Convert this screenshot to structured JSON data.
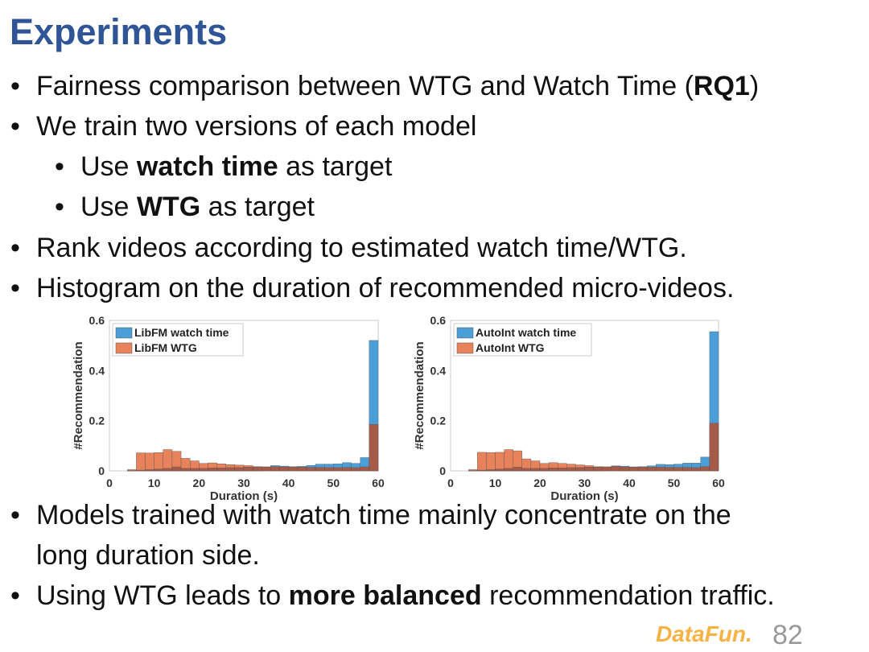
{
  "title": "Experiments",
  "bullets": [
    {
      "pre": "Fairness comparison between WTG and Watch Time (",
      "bold": "RQ1",
      "post": ")"
    },
    {
      "pre": "We train two versions of each model",
      "bold": "",
      "post": ""
    },
    {
      "pre": "Use ",
      "bold": "watch time",
      "post": " as target"
    },
    {
      "pre": "Use ",
      "bold": "WTG",
      "post": " as target"
    },
    {
      "pre": "Rank videos according to estimated watch time/WTG.",
      "bold": "",
      "post": ""
    },
    {
      "pre": "Histogram on the duration of recommended micro-videos.",
      "bold": "",
      "post": ""
    },
    {
      "pre": "Models trained with watch time mainly concentrate on the",
      "bold": "",
      "post": ""
    },
    {
      "pre": "long duration side.",
      "bold": "",
      "post": ""
    },
    {
      "pre": "Using WTG leads to ",
      "bold": "more balanced",
      "post": " recommendation traffic."
    }
  ],
  "page_number": "82",
  "logo_text": "DataFun.",
  "colors": {
    "title": "#2f5597",
    "watch_time": "#4a9fd8",
    "wtg": "#e8825a",
    "overlap": "#a65a48"
  },
  "chart_data": [
    {
      "type": "bar",
      "xlabel": "Duration (s)",
      "ylabel": "#Recommendation",
      "xlim": [
        0,
        60
      ],
      "ylim": [
        0,
        0.6
      ],
      "bin_width": 2,
      "xticks": [
        "0",
        "10",
        "20",
        "30",
        "40",
        "50",
        "60"
      ],
      "yticks": [
        "0",
        "0.2",
        "0.4",
        "0.6"
      ],
      "legend": "top-left",
      "series": [
        {
          "name": "LibFM watch time",
          "values": [
            0,
            0,
            0.001,
            0.003,
            0.005,
            0.007,
            0.01,
            0.016,
            0.01,
            0.01,
            0.01,
            0.012,
            0.012,
            0.013,
            0.013,
            0.015,
            0.016,
            0.016,
            0.021,
            0.019,
            0.017,
            0.018,
            0.022,
            0.027,
            0.027,
            0.028,
            0.033,
            0.03,
            0.053,
            0.52
          ]
        },
        {
          "name": "LibFM WTG",
          "values": [
            0,
            0,
            0.005,
            0.072,
            0.071,
            0.073,
            0.085,
            0.078,
            0.05,
            0.04,
            0.03,
            0.032,
            0.028,
            0.025,
            0.023,
            0.021,
            0.017,
            0.016,
            0.017,
            0.016,
            0.015,
            0.015,
            0.014,
            0.014,
            0.013,
            0.013,
            0.014,
            0.013,
            0.016,
            0.185
          ]
        }
      ]
    },
    {
      "type": "bar",
      "xlabel": "Duration (s)",
      "ylabel": "#Recommendation",
      "xlim": [
        0,
        60
      ],
      "ylim": [
        0,
        0.6
      ],
      "bin_width": 2,
      "xticks": [
        "0",
        "10",
        "20",
        "30",
        "40",
        "50",
        "60"
      ],
      "yticks": [
        "0",
        "0.2",
        "0.4",
        "0.6"
      ],
      "legend": "top-left",
      "series": [
        {
          "name": "AutoInt watch time",
          "values": [
            0,
            0,
            0.001,
            0.003,
            0.005,
            0.007,
            0.01,
            0.015,
            0.01,
            0.01,
            0.01,
            0.012,
            0.012,
            0.013,
            0.013,
            0.015,
            0.015,
            0.016,
            0.02,
            0.019,
            0.016,
            0.017,
            0.02,
            0.026,
            0.025,
            0.027,
            0.031,
            0.031,
            0.055,
            0.555
          ]
        },
        {
          "name": "AutoInt WTG",
          "values": [
            0,
            0,
            0.005,
            0.074,
            0.073,
            0.074,
            0.085,
            0.08,
            0.048,
            0.04,
            0.03,
            0.033,
            0.03,
            0.027,
            0.024,
            0.021,
            0.017,
            0.016,
            0.018,
            0.016,
            0.015,
            0.015,
            0.015,
            0.015,
            0.014,
            0.014,
            0.014,
            0.013,
            0.017,
            0.19
          ]
        }
      ]
    }
  ]
}
